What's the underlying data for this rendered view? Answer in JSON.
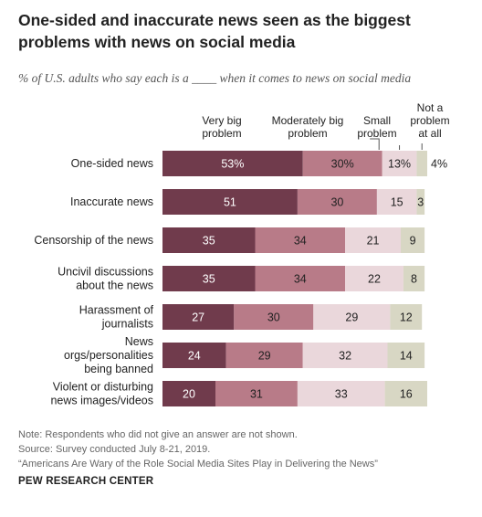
{
  "header": {
    "title": "One-sided and inaccurate news seen as the biggest problems with news on social media",
    "subtitle": "% of U.S. adults who say each is a ____ when it comes to news on social media"
  },
  "legend": {
    "very_big": "Very big problem",
    "moderately_big": "Moderately big problem",
    "small": "Small problem",
    "not_a_problem": "Not a problem at all"
  },
  "colors": {
    "very_big": "#703b4c",
    "moderately_big": "#b87b88",
    "small": "#ead7db",
    "not_a_problem": "#d8d7c4"
  },
  "chart_data": {
    "type": "bar",
    "orientation": "horizontal",
    "stacked": true,
    "title": "One-sided and inaccurate news seen as the biggest problems with news on social media",
    "subtitle": "% of U.S. adults who say each is a ____ when it comes to news on social media",
    "categories": [
      "One-sided news",
      "Inaccurate news",
      "Censorship of the news",
      "Uncivil discussions about the news",
      "Harassment of journalists",
      "News orgs/personalities being banned",
      "Violent or disturbing news images/videos"
    ],
    "series": [
      {
        "name": "Very big problem",
        "values": [
          53,
          51,
          35,
          35,
          27,
          24,
          20
        ]
      },
      {
        "name": "Moderately big problem",
        "values": [
          30,
          30,
          34,
          34,
          30,
          29,
          31
        ]
      },
      {
        "name": "Small problem",
        "values": [
          13,
          15,
          21,
          22,
          29,
          32,
          33
        ]
      },
      {
        "name": "Not a problem at all",
        "values": [
          4,
          3,
          9,
          8,
          12,
          14,
          16
        ]
      }
    ],
    "first_row_labels": [
      "53%",
      "30%",
      "13%",
      "4%"
    ],
    "xlim": [
      0,
      100
    ]
  },
  "footer": {
    "note": "Note: Respondents who did not give an answer are not shown.",
    "source": "Source: Survey conducted July 8-21, 2019.",
    "report": "“Americans Are Wary of the Role Social Media Sites Play in Delivering the News”",
    "brand": "PEW RESEARCH CENTER"
  }
}
